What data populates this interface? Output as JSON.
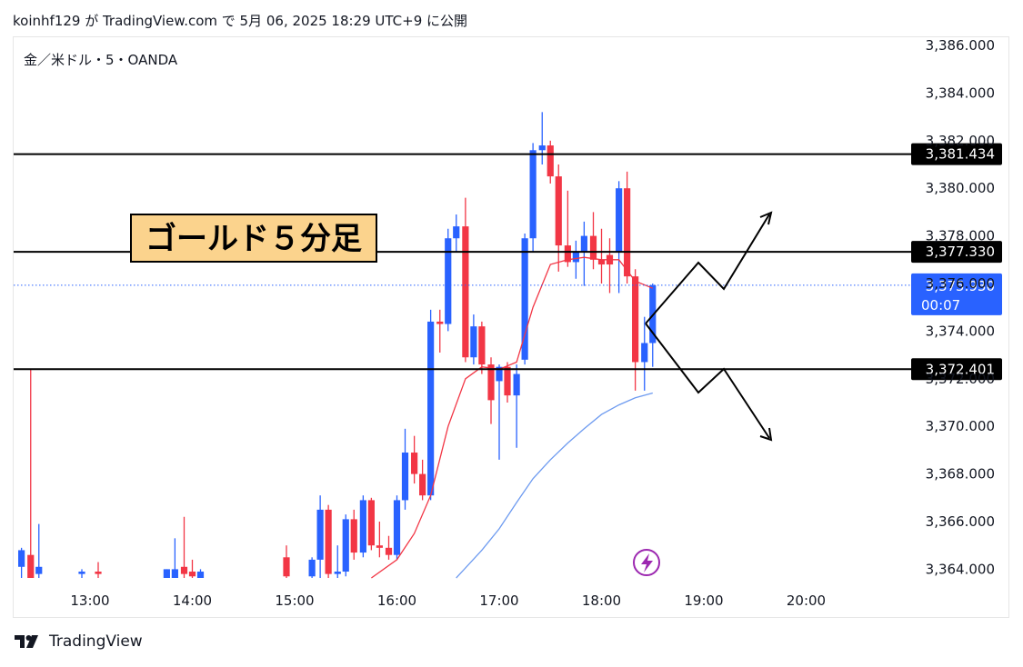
{
  "header": {
    "text": "koinhf129 が TradingView.com で 5月 06, 2025 18:29 UTC+9 に公開"
  },
  "symbol": {
    "text": "金／米ドル・5・OANDA"
  },
  "annotation": {
    "text": "ゴールド５分足"
  },
  "footer": {
    "brand": "TradingView"
  },
  "colors": {
    "up": "#2962ff",
    "down": "#f23645",
    "ema_fast": "#f23645",
    "ema_slow": "#6e9bf0",
    "line": "#000000",
    "current_bg": "#2962ff",
    "annotation_bg": "#fbd38d",
    "flash": "#9c27b0"
  },
  "chart_data": {
    "type": "candlestick",
    "ylim": [
      3363.0,
      3387.0
    ],
    "y_ticks": [
      "3,386.000",
      "3,384.000",
      "3,382.000",
      "3,380.000",
      "3,378.000",
      "3,376.000",
      "3,374.000",
      "3,372.000",
      "3,370.000",
      "3,368.000",
      "3,366.000",
      "3,364.000"
    ],
    "y_tick_values": [
      3386,
      3384,
      3382,
      3380,
      3378,
      3376,
      3374,
      3372,
      3370,
      3368,
      3366,
      3364
    ],
    "x_ticks": [
      "13:00",
      "14:00",
      "15:00",
      "16:00",
      "17:00",
      "18:00",
      "19:00",
      "20:00"
    ],
    "x_tick_hours": [
      13,
      14,
      15,
      16,
      17,
      18,
      19,
      20
    ],
    "levels": [
      {
        "label": "3,381.434",
        "value": 3381.434
      },
      {
        "label": "3,377.330",
        "value": 3377.33
      },
      {
        "label": "3,372.401",
        "value": 3372.401
      }
    ],
    "current": {
      "price": "3,375.930",
      "countdown": "00:07",
      "value": 3375.93
    },
    "candles": [
      {
        "t": 12.33,
        "o": 3364.1,
        "h": 3364.9,
        "l": 3363.5,
        "c": 3364.8
      },
      {
        "t": 12.42,
        "o": 3364.6,
        "h": 3372.4,
        "l": 3363.4,
        "c": 3363.6
      },
      {
        "t": 12.5,
        "o": 3363.8,
        "h": 3365.9,
        "l": 3363.5,
        "c": 3364.1
      },
      {
        "t": 12.92,
        "o": 3363.8,
        "h": 3364.0,
        "l": 3363.6,
        "c": 3363.9
      },
      {
        "t": 13.08,
        "o": 3363.9,
        "h": 3364.3,
        "l": 3363.5,
        "c": 3363.8
      },
      {
        "t": 13.75,
        "o": 3363.6,
        "h": 3364.0,
        "l": 3363.5,
        "c": 3364.0
      },
      {
        "t": 13.83,
        "o": 3363.6,
        "h": 3365.3,
        "l": 3363.5,
        "c": 3364.0
      },
      {
        "t": 13.92,
        "o": 3364.1,
        "h": 3366.2,
        "l": 3363.5,
        "c": 3363.8
      },
      {
        "t": 14.0,
        "o": 3363.9,
        "h": 3364.4,
        "l": 3363.5,
        "c": 3363.7
      },
      {
        "t": 14.08,
        "o": 3363.6,
        "h": 3364.0,
        "l": 3363.5,
        "c": 3363.9
      },
      {
        "t": 14.92,
        "o": 3364.5,
        "h": 3365.0,
        "l": 3363.5,
        "c": 3363.7
      },
      {
        "t": 15.17,
        "o": 3363.7,
        "h": 3364.5,
        "l": 3363.5,
        "c": 3364.4
      },
      {
        "t": 15.25,
        "o": 3364.4,
        "h": 3367.1,
        "l": 3363.6,
        "c": 3366.5
      },
      {
        "t": 15.33,
        "o": 3366.5,
        "h": 3366.7,
        "l": 3363.5,
        "c": 3363.8
      },
      {
        "t": 15.42,
        "o": 3363.8,
        "h": 3365.0,
        "l": 3363.5,
        "c": 3363.9
      },
      {
        "t": 15.5,
        "o": 3363.9,
        "h": 3366.3,
        "l": 3363.7,
        "c": 3366.1
      },
      {
        "t": 15.58,
        "o": 3366.1,
        "h": 3366.5,
        "l": 3364.4,
        "c": 3364.7
      },
      {
        "t": 15.67,
        "o": 3364.7,
        "h": 3367.1,
        "l": 3364.5,
        "c": 3366.9
      },
      {
        "t": 15.75,
        "o": 3366.9,
        "h": 3367.0,
        "l": 3364.8,
        "c": 3365.0
      },
      {
        "t": 15.83,
        "o": 3365.0,
        "h": 3366.0,
        "l": 3364.5,
        "c": 3364.9
      },
      {
        "t": 15.92,
        "o": 3364.9,
        "h": 3365.4,
        "l": 3364.4,
        "c": 3364.6
      },
      {
        "t": 16.0,
        "o": 3364.6,
        "h": 3367.1,
        "l": 3364.4,
        "c": 3366.9
      },
      {
        "t": 16.08,
        "o": 3366.9,
        "h": 3369.9,
        "l": 3366.5,
        "c": 3368.9
      },
      {
        "t": 16.17,
        "o": 3368.9,
        "h": 3369.6,
        "l": 3367.6,
        "c": 3368.0
      },
      {
        "t": 16.25,
        "o": 3368.0,
        "h": 3368.6,
        "l": 3366.9,
        "c": 3367.1
      },
      {
        "t": 16.33,
        "o": 3367.1,
        "h": 3374.9,
        "l": 3366.9,
        "c": 3374.4
      },
      {
        "t": 16.42,
        "o": 3374.4,
        "h": 3374.9,
        "l": 3373.1,
        "c": 3374.3
      },
      {
        "t": 16.5,
        "o": 3374.3,
        "h": 3378.3,
        "l": 3374.0,
        "c": 3377.9
      },
      {
        "t": 16.58,
        "o": 3377.9,
        "h": 3378.9,
        "l": 3377.3,
        "c": 3378.4
      },
      {
        "t": 16.67,
        "o": 3378.4,
        "h": 3379.6,
        "l": 3372.7,
        "c": 3372.9
      },
      {
        "t": 16.75,
        "o": 3372.9,
        "h": 3374.7,
        "l": 3372.6,
        "c": 3374.2
      },
      {
        "t": 16.83,
        "o": 3374.2,
        "h": 3374.4,
        "l": 3372.2,
        "c": 3372.6
      },
      {
        "t": 16.92,
        "o": 3372.6,
        "h": 3372.9,
        "l": 3370.1,
        "c": 3371.1
      },
      {
        "t": 17.0,
        "o": 3371.9,
        "h": 3372.6,
        "l": 3368.6,
        "c": 3372.5
      },
      {
        "t": 17.08,
        "o": 3372.5,
        "h": 3372.7,
        "l": 3371.0,
        "c": 3371.3
      },
      {
        "t": 17.17,
        "o": 3371.3,
        "h": 3372.6,
        "l": 3369.1,
        "c": 3372.2
      },
      {
        "t": 17.25,
        "o": 3372.8,
        "h": 3378.1,
        "l": 3372.6,
        "c": 3377.9
      },
      {
        "t": 17.33,
        "o": 3377.9,
        "h": 3381.9,
        "l": 3377.3,
        "c": 3381.6
      },
      {
        "t": 17.42,
        "o": 3381.6,
        "h": 3383.2,
        "l": 3381.0,
        "c": 3381.8
      },
      {
        "t": 17.5,
        "o": 3381.8,
        "h": 3382.0,
        "l": 3380.2,
        "c": 3380.5
      },
      {
        "t": 17.58,
        "o": 3380.5,
        "h": 3381.0,
        "l": 3376.5,
        "c": 3377.6
      },
      {
        "t": 17.67,
        "o": 3377.6,
        "h": 3379.9,
        "l": 3376.7,
        "c": 3376.9
      },
      {
        "t": 17.75,
        "o": 3376.9,
        "h": 3377.8,
        "l": 3376.2,
        "c": 3377.3
      },
      {
        "t": 17.83,
        "o": 3377.3,
        "h": 3378.6,
        "l": 3375.9,
        "c": 3378.0
      },
      {
        "t": 17.92,
        "o": 3378.0,
        "h": 3379.0,
        "l": 3376.6,
        "c": 3377.0
      },
      {
        "t": 18.0,
        "o": 3377.0,
        "h": 3378.3,
        "l": 3376.0,
        "c": 3376.8
      },
      {
        "t": 18.08,
        "o": 3377.2,
        "h": 3377.9,
        "l": 3375.6,
        "c": 3376.8
      },
      {
        "t": 18.17,
        "o": 3377.3,
        "h": 3380.3,
        "l": 3375.6,
        "c": 3380.0
      },
      {
        "t": 18.25,
        "o": 3380.0,
        "h": 3380.7,
        "l": 3376.0,
        "c": 3376.3
      },
      {
        "t": 18.33,
        "o": 3376.3,
        "h": 3376.6,
        "l": 3371.5,
        "c": 3372.7
      },
      {
        "t": 18.42,
        "o": 3372.7,
        "h": 3374.6,
        "l": 3371.5,
        "c": 3373.5
      },
      {
        "t": 18.5,
        "o": 3373.5,
        "h": 3376.0,
        "l": 3372.5,
        "c": 3375.93
      }
    ],
    "ema_fast": [
      [
        15.75,
        3363.5
      ],
      [
        16.0,
        3364.4
      ],
      [
        16.17,
        3365.5
      ],
      [
        16.33,
        3367.1
      ],
      [
        16.5,
        3370.0
      ],
      [
        16.67,
        3372.0
      ],
      [
        16.83,
        3372.5
      ],
      [
        17.0,
        3372.4
      ],
      [
        17.17,
        3372.7
      ],
      [
        17.33,
        3375.0
      ],
      [
        17.5,
        3376.8
      ],
      [
        17.67,
        3377.0
      ],
      [
        17.83,
        3377.1
      ],
      [
        18.0,
        3377.0
      ],
      [
        18.17,
        3377.0
      ],
      [
        18.33,
        3376.1
      ],
      [
        18.5,
        3375.8
      ]
    ],
    "ema_slow": [
      [
        16.58,
        3363.6
      ],
      [
        16.83,
        3364.8
      ],
      [
        17.0,
        3365.7
      ],
      [
        17.17,
        3366.8
      ],
      [
        17.33,
        3367.8
      ],
      [
        17.5,
        3368.6
      ],
      [
        17.67,
        3369.3
      ],
      [
        17.83,
        3369.9
      ],
      [
        18.0,
        3370.5
      ],
      [
        18.17,
        3370.9
      ],
      [
        18.33,
        3371.2
      ],
      [
        18.5,
        3371.4
      ]
    ]
  }
}
